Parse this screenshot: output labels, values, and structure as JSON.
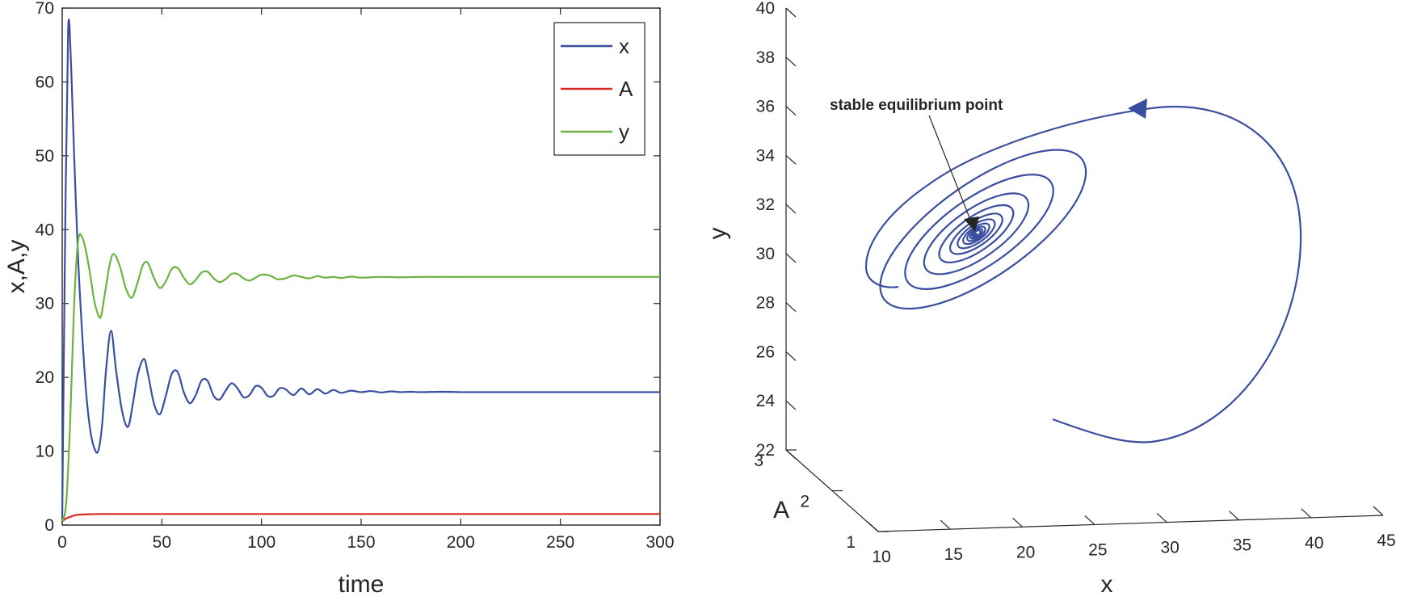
{
  "chart_data": [
    {
      "type": "line",
      "xlabel": "time",
      "ylabel": "x,A,y",
      "xlim": [
        0,
        300
      ],
      "ylim": [
        0,
        70
      ],
      "x_ticks": [
        "0",
        "50",
        "100",
        "150",
        "200",
        "250",
        "300"
      ],
      "y_ticks": [
        "0",
        "10",
        "20",
        "30",
        "40",
        "50",
        "60",
        "70"
      ],
      "grid": false,
      "legend_position": "top-right",
      "series": [
        {
          "name": "x",
          "color": "#3a4ea0",
          "t": [
            0,
            1.5,
            3,
            4.5,
            6,
            8,
            10,
            12,
            14,
            16,
            18,
            20,
            22,
            24.5,
            27,
            30,
            33,
            35.5,
            38,
            41,
            43,
            46,
            49,
            52,
            55,
            58,
            61,
            64,
            67,
            70,
            73,
            76,
            79,
            82,
            85,
            88,
            91,
            94,
            97,
            100,
            103,
            106,
            109,
            112,
            116,
            120,
            124,
            128,
            132,
            136,
            140,
            145,
            150,
            155,
            160,
            165,
            170,
            175,
            180,
            190,
            200,
            220,
            250,
            280,
            300
          ],
          "values": [
            0.5,
            40,
            67.3,
            62,
            50,
            36,
            26,
            18,
            13,
            10.5,
            10,
            13.5,
            21,
            26.3,
            21,
            15.5,
            13.3,
            16.5,
            20.5,
            22.5,
            20.5,
            16.5,
            15,
            17.5,
            20.5,
            20.7,
            18,
            16.5,
            17.6,
            19.6,
            19.5,
            17.5,
            17,
            18.2,
            19.2,
            18.5,
            17.3,
            17.6,
            18.8,
            18.6,
            17.5,
            17.5,
            18.5,
            18.4,
            17.6,
            18.5,
            17.7,
            18.4,
            17.8,
            18.3,
            17.9,
            18.2,
            18,
            18.15,
            17.95,
            18.1,
            18,
            18.05,
            18,
            18.05,
            18,
            18,
            18,
            18,
            18
          ]
        },
        {
          "name": "A",
          "color": "#d62a22",
          "t": [
            0,
            2,
            4,
            6,
            8,
            12,
            20,
            50,
            100,
            150,
            200,
            250,
            300
          ],
          "values": [
            0.5,
            0.9,
            1.1,
            1.3,
            1.4,
            1.45,
            1.5,
            1.5,
            1.5,
            1.5,
            1.5,
            1.5,
            1.5
          ],
          "constant_label": "1.5"
        },
        {
          "name": "y",
          "color": "#6db33f",
          "t": [
            0,
            2,
            4,
            6,
            8,
            10,
            12,
            14,
            16,
            18,
            19.5,
            21.5,
            24,
            26,
            29,
            32,
            35,
            38,
            40.5,
            43,
            46,
            49,
            52,
            55,
            58,
            61,
            64,
            67,
            70,
            73,
            76,
            79,
            82,
            85,
            88,
            91,
            94,
            97,
            100,
            104,
            108,
            112,
            116,
            120,
            124,
            128,
            132,
            136,
            140,
            145,
            150,
            160,
            170,
            180,
            200,
            250,
            300
          ],
          "values": [
            0.5,
            3,
            14,
            30,
            38.5,
            39,
            37,
            34,
            30.5,
            28.5,
            28.3,
            31.5,
            35.5,
            36.7,
            35,
            32,
            30.8,
            33,
            35.2,
            35.5,
            33.5,
            32.1,
            33,
            34.7,
            34.8,
            33.5,
            32.6,
            33.2,
            34.2,
            34.3,
            33.4,
            32.9,
            33.3,
            34,
            34,
            33.4,
            33.1,
            33.5,
            33.9,
            33.8,
            33.3,
            33.4,
            33.8,
            33.6,
            33.4,
            33.7,
            33.5,
            33.6,
            33.45,
            33.65,
            33.5,
            33.6,
            33.55,
            33.6,
            33.6,
            33.6,
            33.6
          ]
        }
      ]
    },
    {
      "type": "line-3d",
      "xlabel": "x",
      "ylabel": "y",
      "zlabel": "A",
      "xlim": [
        10,
        45
      ],
      "ylim": [
        22,
        40
      ],
      "alim": [
        1,
        3
      ],
      "x_ticks": [
        "10",
        "15",
        "20",
        "25",
        "30",
        "35",
        "40",
        "45"
      ],
      "y_ticks": [
        "22",
        "24",
        "26",
        "28",
        "30",
        "32",
        "34",
        "36",
        "38",
        "40"
      ],
      "a_ticks": [
        "1",
        "2",
        "3"
      ],
      "annotation": "stable equilibrium point",
      "series": [
        {
          "name": "",
          "color": "#3a4ea0",
          "description_points": "spiral trajectory converging to equilibrium",
          "equilibrium": {
            "x": 18,
            "A": 1.5,
            "y": 33.6
          }
        }
      ]
    }
  ]
}
